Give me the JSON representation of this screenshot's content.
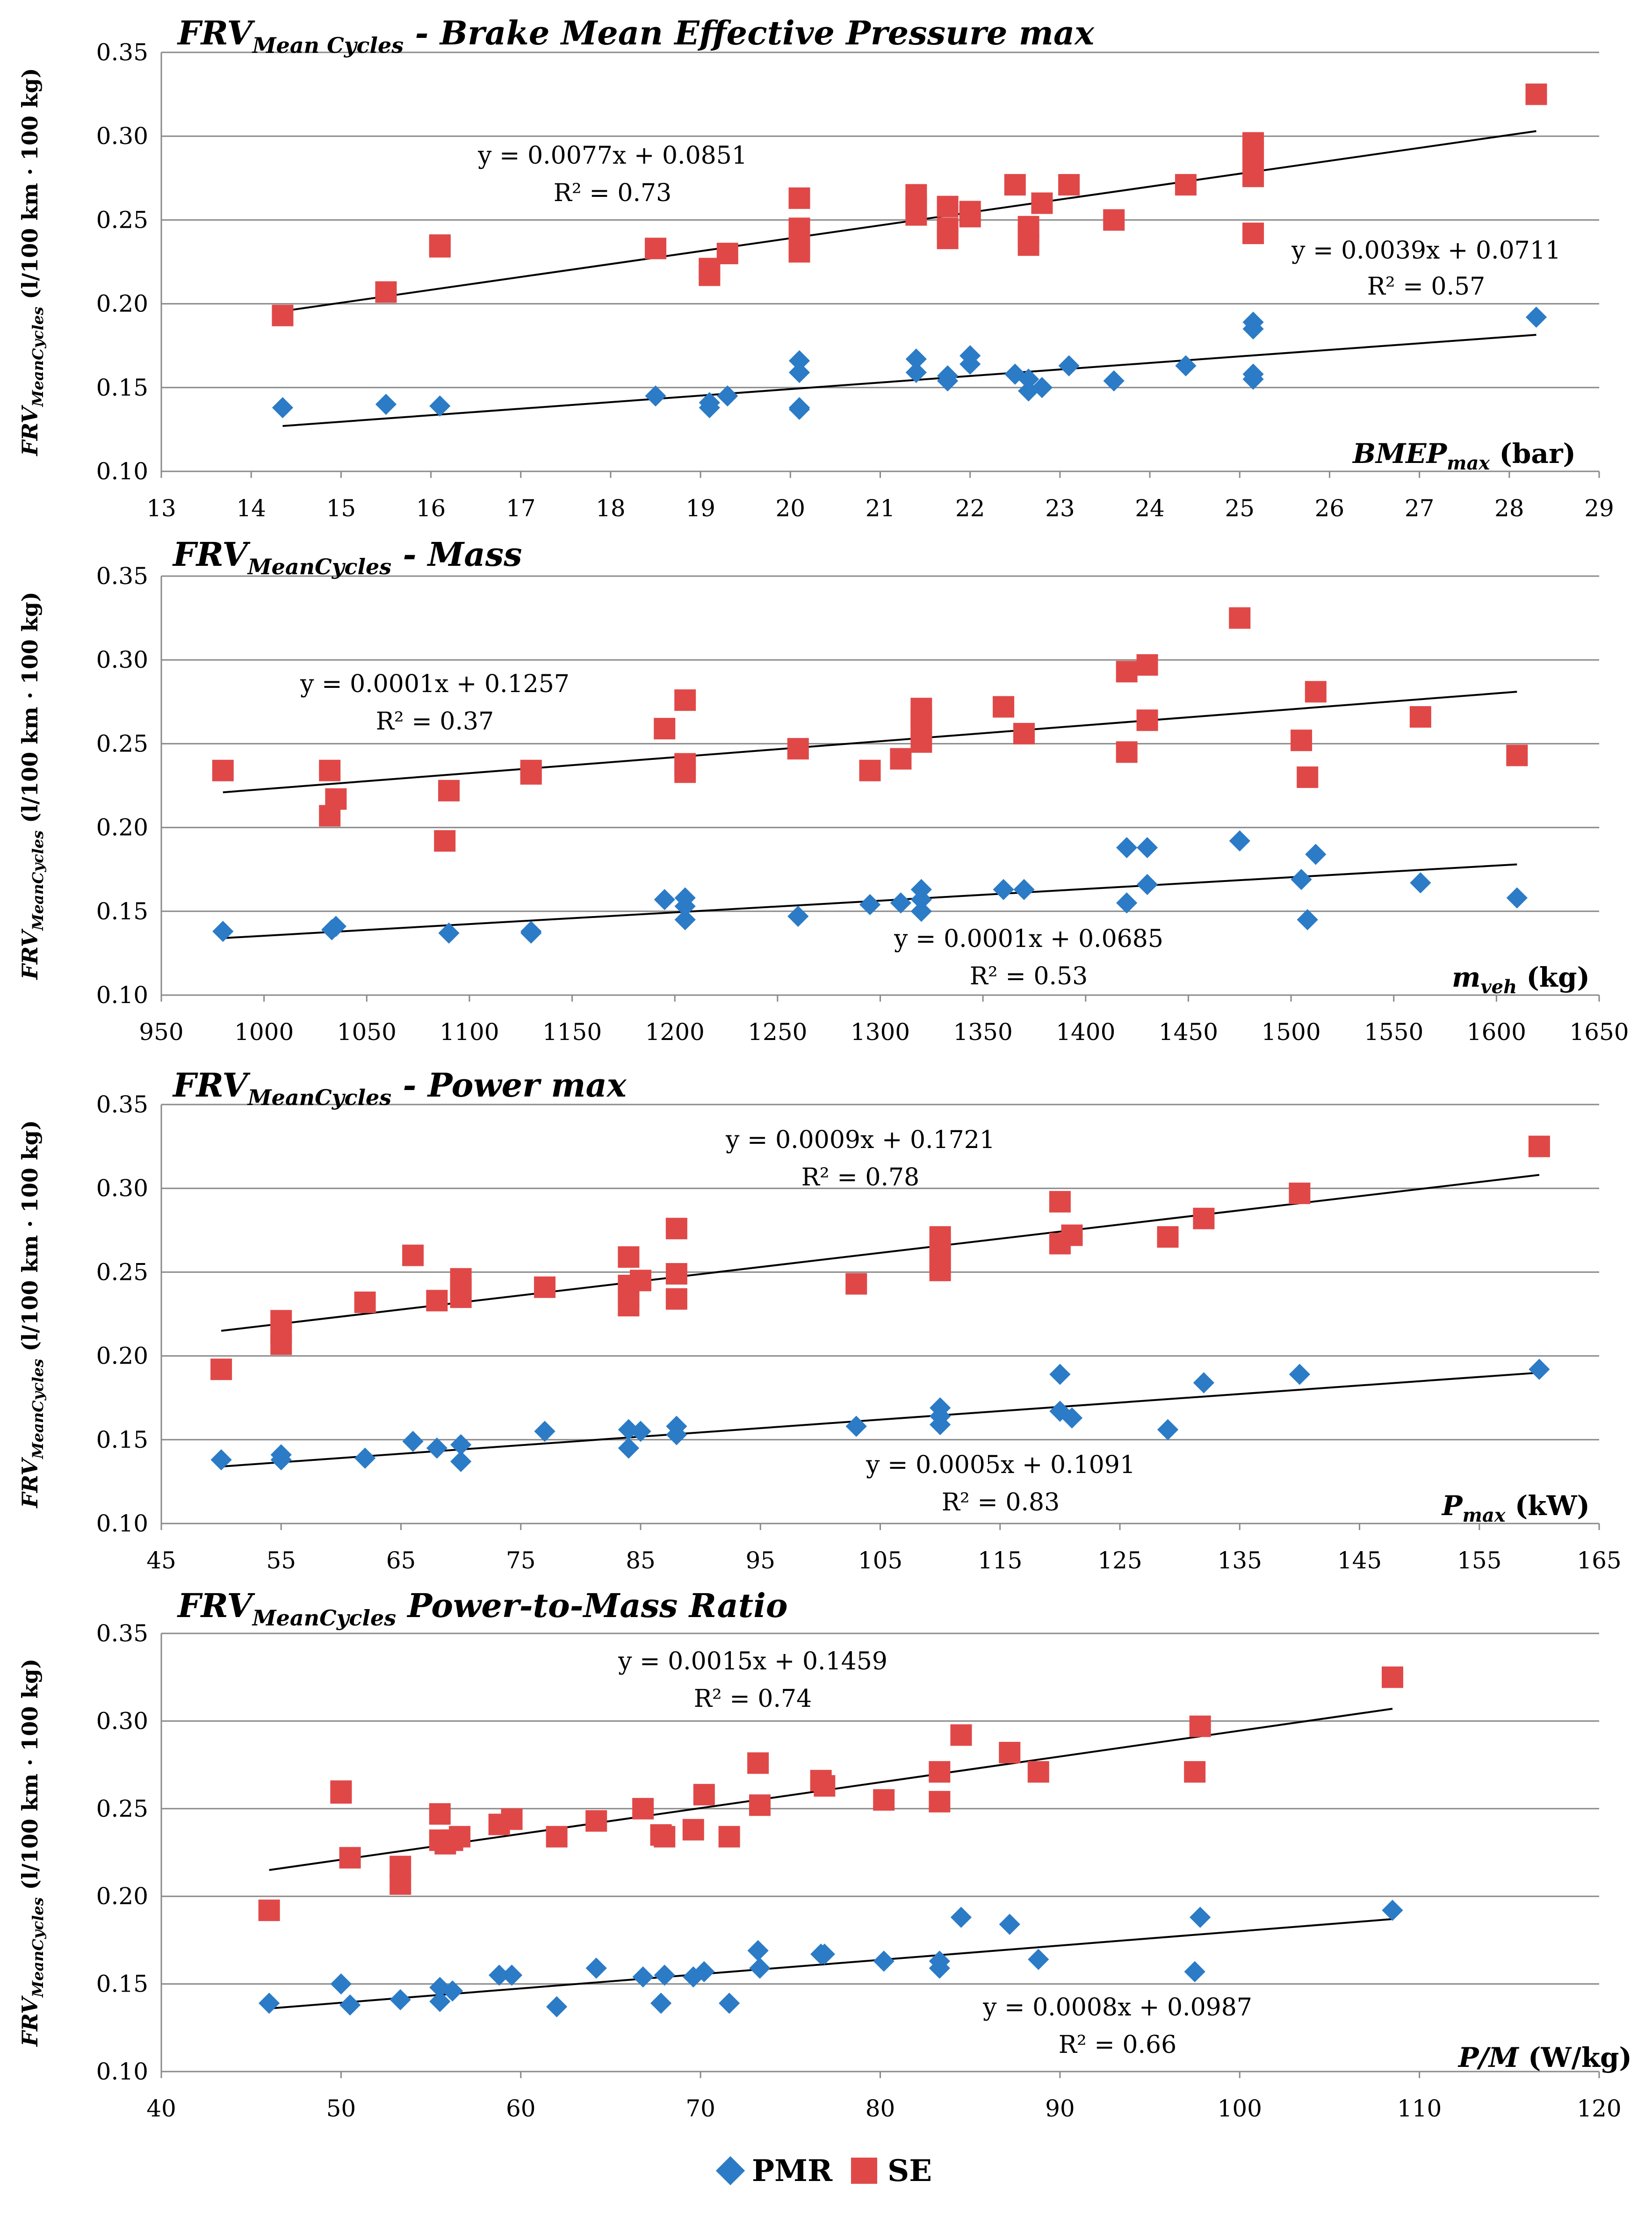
{
  "legend": {
    "pmr_label": "PMR",
    "se_label": "SE"
  },
  "colors": {
    "pmr": "#2b7bc6",
    "se": "#e04848",
    "grid": "#8a8a8a",
    "axis": "#8a8a8a",
    "trend": "#000000"
  },
  "y_label": {
    "main": "FRV",
    "sub": "MeanCycles",
    "unit": " (l/100 km · 100 kg)"
  },
  "chart_data": [
    {
      "type": "scatter",
      "title": {
        "main": "FRV",
        "sub": "Mean Cycles",
        "rest": " - Brake Mean Effective Pressure max"
      },
      "xlabel": {
        "main": "BMEP",
        "sub": "max",
        "unit": " (bar)"
      },
      "xlim": [
        13,
        29
      ],
      "xticks": [
        13,
        14,
        15,
        16,
        17,
        18,
        19,
        20,
        21,
        22,
        23,
        24,
        25,
        26,
        27,
        28,
        29
      ],
      "ylim": [
        0.1,
        0.35
      ],
      "yticks": [
        "0.10",
        "0.15",
        "0.20",
        "0.25",
        "0.30",
        "0.35"
      ],
      "se_eq": "y = 0.0077x + 0.0851",
      "se_r2": "R² = 0.73",
      "pmr_eq": "y = 0.0039x + 0.0711",
      "pmr_r2": "R² = 0.57",
      "se_trend": {
        "slope": 0.0077,
        "intercept": 0.0851,
        "x": [
          14.35,
          28.3
        ]
      },
      "pmr_trend": {
        "slope": 0.0039,
        "intercept": 0.0711,
        "x": [
          14.35,
          28.3
        ]
      },
      "se_points": [
        [
          14.35,
          0.193
        ],
        [
          15.5,
          0.207
        ],
        [
          16.1,
          0.235
        ],
        [
          16.1,
          0.234
        ],
        [
          18.5,
          0.233
        ],
        [
          19.1,
          0.221
        ],
        [
          19.1,
          0.217
        ],
        [
          19.3,
          0.23
        ],
        [
          20.1,
          0.263
        ],
        [
          20.1,
          0.245
        ],
        [
          20.1,
          0.235
        ],
        [
          20.1,
          0.231
        ],
        [
          21.4,
          0.265
        ],
        [
          21.4,
          0.259
        ],
        [
          21.4,
          0.253
        ],
        [
          21.75,
          0.258
        ],
        [
          21.75,
          0.245
        ],
        [
          21.75,
          0.239
        ],
        [
          22.0,
          0.255
        ],
        [
          22.0,
          0.252
        ],
        [
          22.5,
          0.271
        ],
        [
          22.65,
          0.246
        ],
        [
          22.65,
          0.241
        ],
        [
          22.65,
          0.235
        ],
        [
          22.8,
          0.26
        ],
        [
          23.1,
          0.271
        ],
        [
          23.6,
          0.25
        ],
        [
          24.4,
          0.271
        ],
        [
          25.15,
          0.296
        ],
        [
          25.15,
          0.291
        ],
        [
          25.15,
          0.283
        ],
        [
          25.15,
          0.276
        ],
        [
          25.15,
          0.242
        ],
        [
          28.3,
          0.325
        ]
      ],
      "pmr_points": [
        [
          14.35,
          0.138
        ],
        [
          15.5,
          0.14
        ],
        [
          16.1,
          0.139
        ],
        [
          18.5,
          0.145
        ],
        [
          19.1,
          0.141
        ],
        [
          19.1,
          0.138
        ],
        [
          19.3,
          0.145
        ],
        [
          20.1,
          0.166
        ],
        [
          20.1,
          0.159
        ],
        [
          20.1,
          0.138
        ],
        [
          20.1,
          0.137
        ],
        [
          21.4,
          0.167
        ],
        [
          21.4,
          0.159
        ],
        [
          21.75,
          0.157
        ],
        [
          21.75,
          0.154
        ],
        [
          22.0,
          0.169
        ],
        [
          22.0,
          0.164
        ],
        [
          22.5,
          0.158
        ],
        [
          22.65,
          0.155
        ],
        [
          22.65,
          0.148
        ],
        [
          22.8,
          0.15
        ],
        [
          23.1,
          0.163
        ],
        [
          23.6,
          0.154
        ],
        [
          24.4,
          0.163
        ],
        [
          25.15,
          0.189
        ],
        [
          25.15,
          0.185
        ],
        [
          25.15,
          0.158
        ],
        [
          25.15,
          0.155
        ],
        [
          28.3,
          0.192
        ]
      ]
    },
    {
      "type": "scatter",
      "title": {
        "main": "FRV",
        "sub": "MeanCycles",
        "rest": " - Mass"
      },
      "xlabel": {
        "main": "m",
        "sub": "veh",
        "unit": " (kg)"
      },
      "xlim": [
        950,
        1650
      ],
      "xticks": [
        950,
        1000,
        1050,
        1100,
        1150,
        1200,
        1250,
        1300,
        1350,
        1400,
        1450,
        1500,
        1550,
        1600,
        1650
      ],
      "ylim": [
        0.1,
        0.35
      ],
      "yticks": [
        "0.10",
        "0.15",
        "0.20",
        "0.25",
        "0.30",
        "0.35"
      ],
      "se_eq": "y = 0.0001x + 0.1257",
      "se_r2": "R² = 0.37",
      "pmr_eq": "y = 0.0001x + 0.0685",
      "pmr_r2": "R² = 0.53",
      "se_trend": {
        "x": [
          980,
          1610
        ],
        "y": [
          0.221,
          0.281
        ]
      },
      "pmr_trend": {
        "x": [
          980,
          1610
        ],
        "y": [
          0.134,
          0.178
        ]
      },
      "se_points": [
        [
          980,
          0.234
        ],
        [
          1032,
          0.234
        ],
        [
          1032,
          0.207
        ],
        [
          1035,
          0.217
        ],
        [
          1088,
          0.192
        ],
        [
          1090,
          0.222
        ],
        [
          1130,
          0.232
        ],
        [
          1130,
          0.234
        ],
        [
          1195,
          0.259
        ],
        [
          1205,
          0.276
        ],
        [
          1205,
          0.238
        ],
        [
          1205,
          0.233
        ],
        [
          1260,
          0.247
        ],
        [
          1295,
          0.234
        ],
        [
          1310,
          0.241
        ],
        [
          1320,
          0.271
        ],
        [
          1320,
          0.265
        ],
        [
          1320,
          0.258
        ],
        [
          1320,
          0.251
        ],
        [
          1360,
          0.272
        ],
        [
          1370,
          0.256
        ],
        [
          1420,
          0.293
        ],
        [
          1420,
          0.245
        ],
        [
          1430,
          0.297
        ],
        [
          1430,
          0.264
        ],
        [
          1475,
          0.325
        ],
        [
          1505,
          0.252
        ],
        [
          1508,
          0.23
        ],
        [
          1512,
          0.281
        ],
        [
          1563,
          0.266
        ],
        [
          1610,
          0.243
        ]
      ],
      "pmr_points": [
        [
          980,
          0.138
        ],
        [
          1033,
          0.139
        ],
        [
          1035,
          0.141
        ],
        [
          1090,
          0.137
        ],
        [
          1130,
          0.138
        ],
        [
          1130,
          0.137
        ],
        [
          1195,
          0.157
        ],
        [
          1205,
          0.158
        ],
        [
          1205,
          0.153
        ],
        [
          1205,
          0.145
        ],
        [
          1260,
          0.147
        ],
        [
          1295,
          0.154
        ],
        [
          1310,
          0.155
        ],
        [
          1320,
          0.163
        ],
        [
          1320,
          0.157
        ],
        [
          1320,
          0.15
        ],
        [
          1360,
          0.163
        ],
        [
          1370,
          0.163
        ],
        [
          1420,
          0.188
        ],
        [
          1420,
          0.155
        ],
        [
          1430,
          0.188
        ],
        [
          1430,
          0.166
        ],
        [
          1475,
          0.192
        ],
        [
          1505,
          0.169
        ],
        [
          1508,
          0.145
        ],
        [
          1512,
          0.184
        ],
        [
          1563,
          0.167
        ],
        [
          1610,
          0.158
        ]
      ]
    },
    {
      "type": "scatter",
      "title": {
        "main": "FRV",
        "sub": "MeanCycles",
        "rest": " - Power max"
      },
      "xlabel": {
        "main": "P",
        "sub": "max",
        "unit": " (kW)"
      },
      "xlim": [
        45,
        165
      ],
      "xticks": [
        45,
        55,
        65,
        75,
        85,
        95,
        105,
        115,
        125,
        135,
        145,
        155,
        165
      ],
      "ylim": [
        0.1,
        0.35
      ],
      "yticks": [
        "0.10",
        "0.15",
        "0.20",
        "0.25",
        "0.30",
        "0.35"
      ],
      "se_eq": "y = 0.0009x + 0.1721",
      "se_r2": "R² = 0.78",
      "pmr_eq": "y = 0.0005x + 0.1091",
      "pmr_r2": "R² = 0.83",
      "se_trend": {
        "x": [
          50,
          160
        ],
        "y": [
          0.215,
          0.308
        ]
      },
      "pmr_trend": {
        "x": [
          50,
          160
        ],
        "y": [
          0.134,
          0.19
        ]
      },
      "se_points": [
        [
          50,
          0.192
        ],
        [
          55,
          0.221
        ],
        [
          55,
          0.213
        ],
        [
          55,
          0.207
        ],
        [
          62,
          0.232
        ],
        [
          66,
          0.26
        ],
        [
          68,
          0.233
        ],
        [
          70,
          0.246
        ],
        [
          70,
          0.24
        ],
        [
          70,
          0.235
        ],
        [
          77,
          0.241
        ],
        [
          84,
          0.259
        ],
        [
          84,
          0.242
        ],
        [
          84,
          0.234
        ],
        [
          84,
          0.23
        ],
        [
          85,
          0.245
        ],
        [
          88,
          0.276
        ],
        [
          88,
          0.249
        ],
        [
          88,
          0.234
        ],
        [
          103,
          0.243
        ],
        [
          110,
          0.271
        ],
        [
          110,
          0.264
        ],
        [
          110,
          0.257
        ],
        [
          110,
          0.251
        ],
        [
          120,
          0.292
        ],
        [
          120,
          0.267
        ],
        [
          121,
          0.272
        ],
        [
          129,
          0.271
        ],
        [
          132,
          0.282
        ],
        [
          140,
          0.297
        ],
        [
          160,
          0.325
        ]
      ],
      "pmr_points": [
        [
          50,
          0.138
        ],
        [
          55,
          0.141
        ],
        [
          55,
          0.138
        ],
        [
          62,
          0.139
        ],
        [
          66,
          0.149
        ],
        [
          68,
          0.145
        ],
        [
          70,
          0.147
        ],
        [
          70,
          0.137
        ],
        [
          77,
          0.155
        ],
        [
          84,
          0.156
        ],
        [
          84,
          0.145
        ],
        [
          85,
          0.155
        ],
        [
          88,
          0.158
        ],
        [
          88,
          0.153
        ],
        [
          103,
          0.158
        ],
        [
          110,
          0.169
        ],
        [
          110,
          0.164
        ],
        [
          110,
          0.159
        ],
        [
          120,
          0.189
        ],
        [
          120,
          0.167
        ],
        [
          121,
          0.163
        ],
        [
          129,
          0.156
        ],
        [
          132,
          0.184
        ],
        [
          140,
          0.189
        ],
        [
          160,
          0.192
        ]
      ]
    },
    {
      "type": "scatter",
      "title": {
        "main": "FRV",
        "sub": "MeanCycles",
        "rest": " Power-to-Mass Ratio"
      },
      "xlabel": {
        "main": "P/M",
        "sub": "",
        "unit": " (W/kg)"
      },
      "xlim": [
        40,
        120
      ],
      "xticks": [
        40,
        50,
        60,
        70,
        80,
        90,
        100,
        110,
        120
      ],
      "ylim": [
        0.1,
        0.35
      ],
      "yticks": [
        "0.10",
        "0.15",
        "0.20",
        "0.25",
        "0.30",
        "0.35"
      ],
      "se_eq": "y = 0.0015x + 0.1459",
      "se_r2": "R² = 0.74",
      "pmr_eq": "y = 0.0008x + 0.0987",
      "pmr_r2": "R² = 0.66",
      "se_trend": {
        "x": [
          46,
          108.5
        ],
        "y": [
          0.215,
          0.307
        ]
      },
      "pmr_trend": {
        "x": [
          46,
          108.5
        ],
        "y": [
          0.136,
          0.187
        ]
      },
      "se_points": [
        [
          46,
          0.192
        ],
        [
          50,
          0.26
        ],
        [
          50,
          0.259
        ],
        [
          50.5,
          0.222
        ],
        [
          53.3,
          0.217
        ],
        [
          53.3,
          0.207
        ],
        [
          55.5,
          0.247
        ],
        [
          55.5,
          0.232
        ],
        [
          55.8,
          0.23
        ],
        [
          56.2,
          0.232
        ],
        [
          56.6,
          0.234
        ],
        [
          58.8,
          0.241
        ],
        [
          59.5,
          0.244
        ],
        [
          62,
          0.234
        ],
        [
          64.2,
          0.243
        ],
        [
          66.8,
          0.25
        ],
        [
          67.8,
          0.235
        ],
        [
          68,
          0.234
        ],
        [
          69.6,
          0.238
        ],
        [
          70.2,
          0.258
        ],
        [
          71.6,
          0.234
        ],
        [
          73.2,
          0.276
        ],
        [
          73.3,
          0.252
        ],
        [
          76.7,
          0.266
        ],
        [
          76.9,
          0.263
        ],
        [
          80.2,
          0.255
        ],
        [
          83.3,
          0.271
        ],
        [
          83.3,
          0.254
        ],
        [
          84.5,
          0.292
        ],
        [
          87.2,
          0.282
        ],
        [
          88.8,
          0.271
        ],
        [
          97.5,
          0.271
        ],
        [
          97.8,
          0.297
        ],
        [
          108.5,
          0.325
        ]
      ],
      "pmr_points": [
        [
          46,
          0.139
        ],
        [
          50,
          0.15
        ],
        [
          50.5,
          0.138
        ],
        [
          53.3,
          0.141
        ],
        [
          55.5,
          0.148
        ],
        [
          55.5,
          0.14
        ],
        [
          56.2,
          0.146
        ],
        [
          58.8,
          0.155
        ],
        [
          59.5,
          0.155
        ],
        [
          62,
          0.137
        ],
        [
          64.2,
          0.159
        ],
        [
          66.8,
          0.154
        ],
        [
          67.8,
          0.139
        ],
        [
          68,
          0.155
        ],
        [
          69.6,
          0.154
        ],
        [
          70.2,
          0.157
        ],
        [
          71.6,
          0.139
        ],
        [
          73.2,
          0.169
        ],
        [
          73.3,
          0.159
        ],
        [
          76.7,
          0.167
        ],
        [
          76.9,
          0.167
        ],
        [
          80.2,
          0.163
        ],
        [
          83.3,
          0.163
        ],
        [
          83.3,
          0.159
        ],
        [
          84.5,
          0.188
        ],
        [
          87.2,
          0.184
        ],
        [
          88.8,
          0.164
        ],
        [
          97.5,
          0.157
        ],
        [
          97.8,
          0.188
        ],
        [
          108.5,
          0.192
        ]
      ]
    }
  ]
}
